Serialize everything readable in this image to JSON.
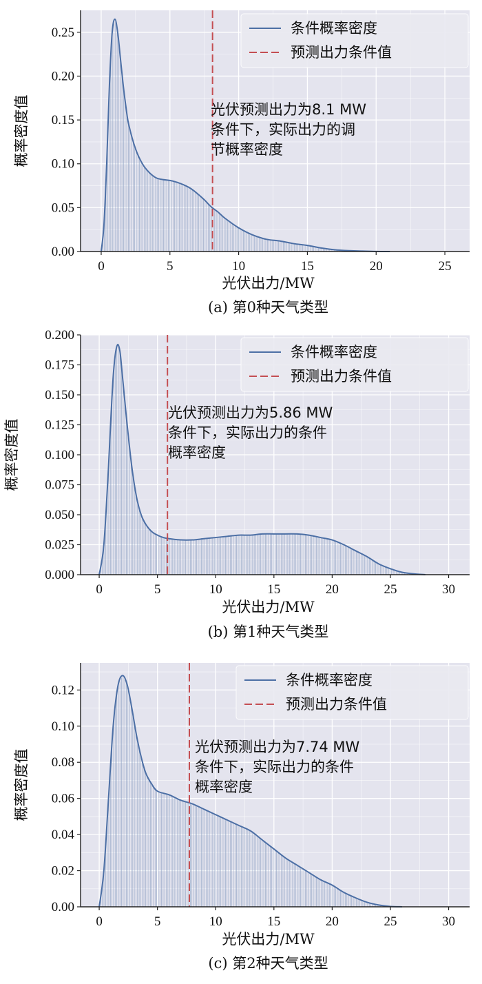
{
  "chart_data": [
    {
      "type": "area",
      "title": "",
      "caption": "(a) 第0种天气类型",
      "xlabel": "光伏出力/MW",
      "ylabel": "概率密度值",
      "xlim": [
        -1.5,
        26.8
      ],
      "ylim": [
        0,
        0.275
      ],
      "xticks": [
        0,
        5,
        10,
        15,
        20,
        25
      ],
      "yticks": [
        0.0,
        0.05,
        0.1,
        0.15,
        0.2,
        0.25
      ],
      "ytick_decimals": 2,
      "grid": true,
      "legend_position": "top-right",
      "series": [
        {
          "name": "条件概率密度",
          "color": "#4c6fa5",
          "x": [
            0,
            0.2,
            0.4,
            0.6,
            0.8,
            1.0,
            1.2,
            1.4,
            1.6,
            1.8,
            2.0,
            2.5,
            3.0,
            3.5,
            4.0,
            4.5,
            5.0,
            5.5,
            6.0,
            6.5,
            7.0,
            7.5,
            8.0,
            8.5,
            9.0,
            10.0,
            11.0,
            12.0,
            13.0,
            14.0,
            15.0,
            16.0,
            17.0,
            18.0,
            19.0,
            20.0,
            21.0
          ],
          "y": [
            0.0,
            0.03,
            0.1,
            0.19,
            0.25,
            0.265,
            0.25,
            0.22,
            0.19,
            0.165,
            0.145,
            0.117,
            0.1,
            0.09,
            0.084,
            0.082,
            0.081,
            0.079,
            0.076,
            0.072,
            0.066,
            0.059,
            0.051,
            0.045,
            0.038,
            0.027,
            0.019,
            0.014,
            0.012,
            0.009,
            0.007,
            0.004,
            0.002,
            0.001,
            0.0005,
            0.0001,
            0.0
          ]
        }
      ],
      "condition_line": {
        "name": "预测出力条件值",
        "x": 8.1,
        "color": "#c44e52"
      },
      "annotation": [
        "光伏预测出力为8.1 MW",
        "条件下，实际出力的调",
        "节概率密度"
      ]
    },
    {
      "type": "area",
      "title": "",
      "caption": "(b) 第1种天气类型",
      "xlabel": "光伏出力/MW",
      "ylabel": "概率密度值",
      "xlim": [
        -1.6,
        31.8
      ],
      "ylim": [
        0,
        0.2
      ],
      "xticks": [
        0,
        5,
        10,
        15,
        20,
        25,
        30
      ],
      "yticks": [
        0.0,
        0.025,
        0.05,
        0.075,
        0.1,
        0.125,
        0.15,
        0.175,
        0.2
      ],
      "ytick_decimals": 3,
      "grid": true,
      "legend_position": "top-right",
      "series": [
        {
          "name": "条件概率密度",
          "color": "#4c6fa5",
          "x": [
            0,
            0.4,
            0.8,
            1.0,
            1.2,
            1.4,
            1.6,
            1.8,
            2.0,
            2.4,
            2.8,
            3.2,
            3.6,
            4.0,
            4.5,
            5.0,
            5.5,
            6.0,
            7.0,
            8.0,
            9.0,
            10.0,
            11.0,
            12.0,
            13.0,
            14.0,
            15.0,
            16.0,
            17.0,
            18.0,
            19.0,
            20.0,
            21.0,
            22.0,
            23.0,
            24.0,
            25.0,
            26.0,
            27.0,
            28.0
          ],
          "y": [
            0.0,
            0.025,
            0.09,
            0.13,
            0.165,
            0.185,
            0.192,
            0.185,
            0.165,
            0.125,
            0.09,
            0.065,
            0.05,
            0.042,
            0.036,
            0.033,
            0.031,
            0.03,
            0.029,
            0.029,
            0.03,
            0.031,
            0.032,
            0.033,
            0.033,
            0.034,
            0.034,
            0.034,
            0.034,
            0.033,
            0.031,
            0.029,
            0.025,
            0.02,
            0.015,
            0.009,
            0.005,
            0.002,
            0.0007,
            0.0
          ]
        }
      ],
      "condition_line": {
        "name": "预测出力条件值",
        "x": 5.86,
        "color": "#c44e52"
      },
      "annotation": [
        "光伏预测出力为5.86 MW",
        "条件下，实际出力的条件",
        "概率密度"
      ]
    },
    {
      "type": "area",
      "title": "",
      "caption": "(c) 第2种天气类型",
      "xlabel": "光伏出力/MW",
      "ylabel": "概率密度值",
      "xlim": [
        -1.6,
        31.8
      ],
      "ylim": [
        0,
        0.135
      ],
      "xticks": [
        0,
        5,
        10,
        15,
        20,
        25,
        30
      ],
      "yticks": [
        0.0,
        0.02,
        0.04,
        0.06,
        0.08,
        0.1,
        0.12
      ],
      "ytick_decimals": 2,
      "grid": true,
      "legend_position": "top-right",
      "series": [
        {
          "name": "条件概率密度",
          "color": "#4c6fa5",
          "x": [
            0,
            0.4,
            0.8,
            1.2,
            1.6,
            2.0,
            2.4,
            2.8,
            3.2,
            3.6,
            4.0,
            4.5,
            5.0,
            6.0,
            7.0,
            8.0,
            9.0,
            10.0,
            11.0,
            12.0,
            13.0,
            14.0,
            15.0,
            16.0,
            17.0,
            18.0,
            19.0,
            20.0,
            21.0,
            22.0,
            23.0,
            24.0,
            25.0,
            26.0
          ],
          "y": [
            0.0,
            0.02,
            0.06,
            0.1,
            0.122,
            0.128,
            0.123,
            0.11,
            0.095,
            0.083,
            0.074,
            0.068,
            0.064,
            0.062,
            0.059,
            0.057,
            0.054,
            0.051,
            0.048,
            0.045,
            0.042,
            0.037,
            0.032,
            0.027,
            0.023,
            0.019,
            0.015,
            0.012,
            0.008,
            0.005,
            0.0025,
            0.001,
            0.0002,
            0.0
          ]
        }
      ],
      "condition_line": {
        "name": "预测出力条件值",
        "x": 7.74,
        "color": "#c44e52"
      },
      "annotation": [
        "光伏预测出力为7.74 MW",
        "条件下，实际出力的条件",
        "概率密度"
      ]
    }
  ]
}
